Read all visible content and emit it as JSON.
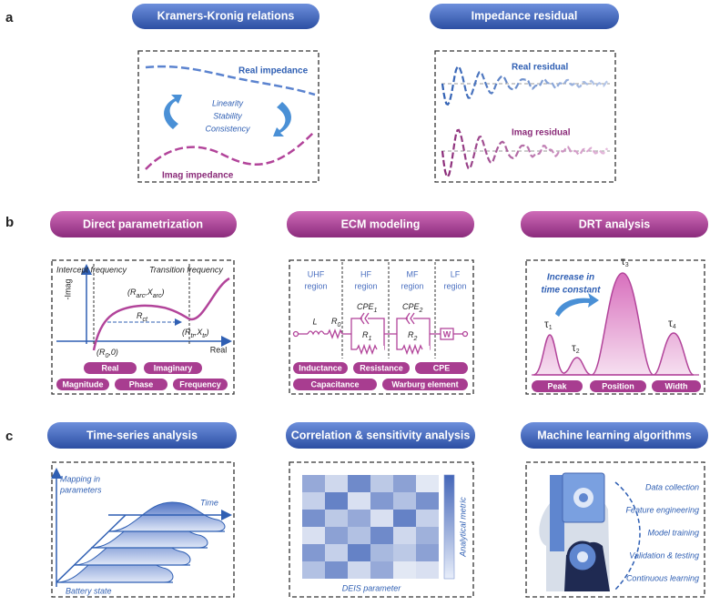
{
  "panel_a": {
    "label": "a",
    "kk": {
      "title": "Kramers-Kronig relations",
      "real": "Real impedance",
      "center": [
        "Linearity",
        "Stability",
        "Consistency"
      ],
      "imag": "Imag impedance"
    },
    "residual": {
      "title": "Impedance residual",
      "real": "Real residual",
      "imag": "Imag residual"
    }
  },
  "panel_b": {
    "label": "b",
    "direct": {
      "title": "Direct parametrization",
      "y_axis": "-Imag",
      "x_axis": "Real",
      "intercept": "Intercept frequency",
      "transition": "Transition frequency",
      "arc_point": [
        "(R",
        "arc",
        ",X",
        "arc",
        ")"
      ],
      "rct": [
        "R",
        "ct"
      ],
      "r0_point": [
        "(R",
        "0",
        ",0)"
      ],
      "tr_point": [
        "(R",
        "tr",
        ",X",
        "tr",
        ")"
      ],
      "pills": [
        "Real",
        "Imaginary",
        "Magnitude",
        "Phase",
        "Frequency"
      ]
    },
    "ecm": {
      "title": "ECM modeling",
      "regions": [
        [
          "UHF",
          "region"
        ],
        [
          "HF",
          "region"
        ],
        [
          "MF",
          "region"
        ],
        [
          "LF",
          "region"
        ]
      ],
      "L": "L",
      "r0": [
        "R",
        "0"
      ],
      "cpe1": [
        "CPE",
        "1"
      ],
      "r1": [
        "R",
        "1"
      ],
      "cpe2": [
        "CPE",
        "2"
      ],
      "r2": [
        "R",
        "2"
      ],
      "w": "W",
      "pills": [
        "Inductance",
        "Resistance",
        "CPE",
        "Capacitance",
        "Warburg element"
      ]
    },
    "drt": {
      "title": "DRT analysis",
      "note": [
        "Increase in",
        "time constant"
      ],
      "taus": [
        [
          "τ",
          "1"
        ],
        [
          "τ",
          "2"
        ],
        [
          "τ",
          "3"
        ],
        [
          "τ",
          "4"
        ]
      ],
      "pills": [
        "Peak",
        "Position",
        "Width"
      ]
    }
  },
  "panel_c": {
    "label": "c",
    "time_series": {
      "title": "Time-series  analysis",
      "mapping": [
        "Mapping in",
        "parameters"
      ],
      "time": "Time",
      "battery": "Battery state"
    },
    "correlation": {
      "title": "Correlation & sensitivity analysis",
      "metric": "Analytical metric",
      "parameter": "DEIS parameter"
    },
    "ml": {
      "title": "Machine learning algorithms",
      "steps": [
        "Data collection",
        "Feature engineering",
        "Model training",
        "Validation & testing",
        "Continuous learning"
      ]
    }
  }
}
